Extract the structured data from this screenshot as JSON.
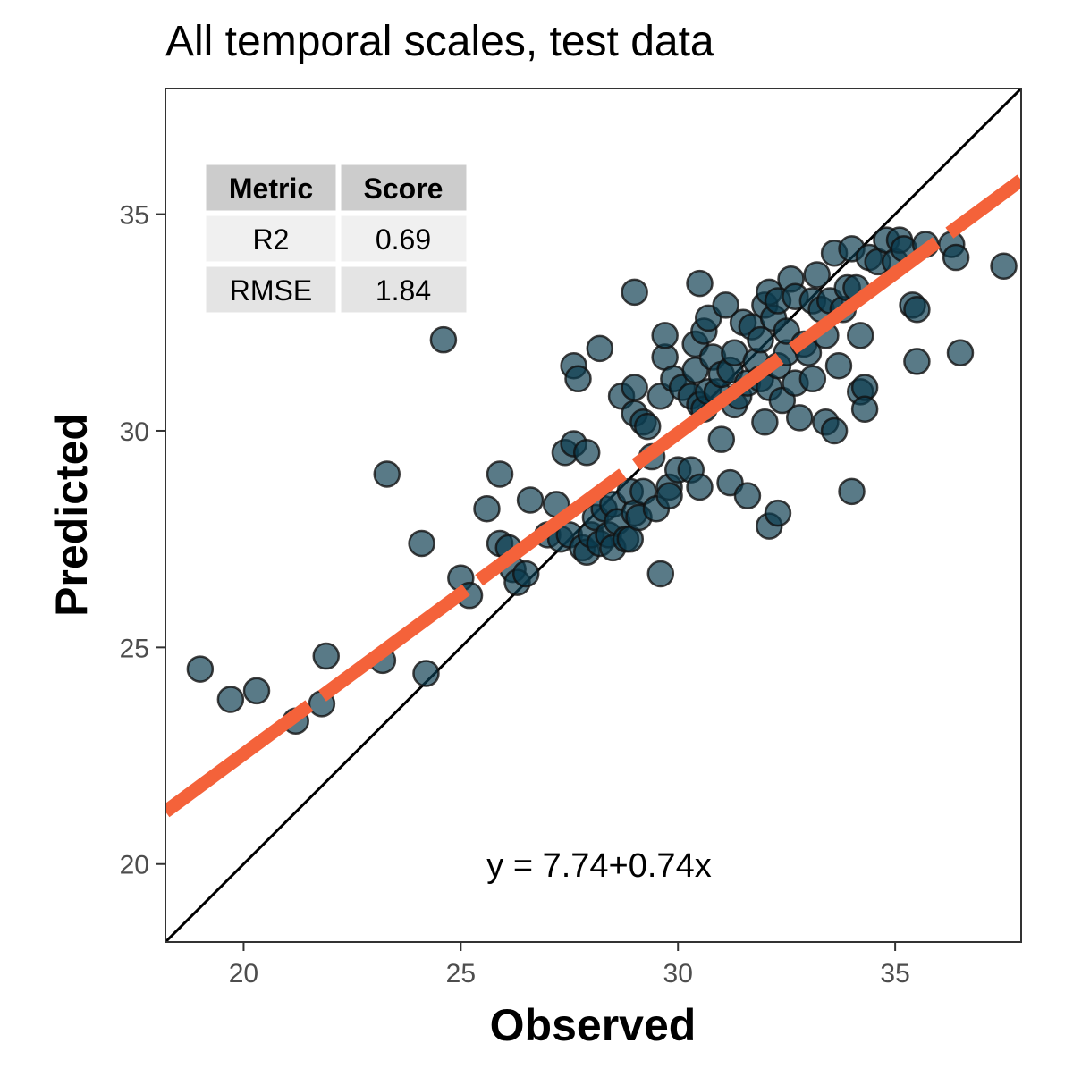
{
  "chart_data": {
    "type": "scatter",
    "title": "All temporal scales, test data",
    "xlabel": "Observed",
    "ylabel": "Predicted",
    "xlim": [
      18.2,
      37.9
    ],
    "ylim": [
      18.2,
      37.9
    ],
    "xticks": [
      20,
      25,
      30,
      35
    ],
    "yticks": [
      20,
      25,
      30,
      35
    ],
    "grid": false,
    "point_color": "#0b3b4e",
    "fit_color": "#f4623a",
    "identity_color": "#000000",
    "fit": {
      "intercept": 7.74,
      "slope": 0.74,
      "label": "y = 7.74+0.74x"
    },
    "metrics_table": {
      "headers": [
        "Metric",
        "Score"
      ],
      "rows": [
        [
          "R2",
          "0.69"
        ],
        [
          "RMSE",
          "1.84"
        ]
      ]
    },
    "points": [
      [
        19.0,
        24.5
      ],
      [
        19.7,
        23.8
      ],
      [
        20.3,
        24.0
      ],
      [
        21.2,
        23.3
      ],
      [
        21.8,
        23.7
      ],
      [
        21.9,
        24.8
      ],
      [
        23.2,
        24.7
      ],
      [
        23.3,
        29.0
      ],
      [
        24.1,
        27.4
      ],
      [
        24.2,
        24.4
      ],
      [
        24.6,
        32.1
      ],
      [
        25.0,
        26.6
      ],
      [
        25.2,
        26.2
      ],
      [
        25.6,
        28.2
      ],
      [
        25.9,
        29.0
      ],
      [
        25.9,
        27.4
      ],
      [
        26.1,
        27.3
      ],
      [
        26.2,
        26.8
      ],
      [
        26.3,
        26.5
      ],
      [
        26.5,
        26.7
      ],
      [
        26.6,
        28.4
      ],
      [
        27.0,
        27.6
      ],
      [
        27.2,
        28.3
      ],
      [
        27.3,
        27.5
      ],
      [
        27.4,
        29.5
      ],
      [
        27.5,
        27.6
      ],
      [
        27.6,
        29.7
      ],
      [
        27.6,
        31.5
      ],
      [
        27.7,
        31.2
      ],
      [
        27.8,
        27.3
      ],
      [
        27.9,
        29.5
      ],
      [
        27.9,
        27.2
      ],
      [
        28.0,
        27.6
      ],
      [
        28.1,
        28.0
      ],
      [
        28.2,
        31.9
      ],
      [
        28.2,
        27.4
      ],
      [
        28.3,
        28.2
      ],
      [
        28.4,
        27.6
      ],
      [
        28.5,
        28.3
      ],
      [
        28.5,
        27.3
      ],
      [
        28.6,
        27.9
      ],
      [
        28.7,
        30.8
      ],
      [
        28.8,
        27.5
      ],
      [
        28.9,
        28.6
      ],
      [
        28.9,
        27.5
      ],
      [
        29.0,
        31.0
      ],
      [
        29.0,
        30.4
      ],
      [
        29.0,
        28.1
      ],
      [
        29.0,
        33.2
      ],
      [
        29.1,
        28.0
      ],
      [
        29.2,
        30.2
      ],
      [
        29.2,
        28.6
      ],
      [
        29.3,
        30.1
      ],
      [
        29.4,
        29.4
      ],
      [
        29.5,
        28.2
      ],
      [
        29.6,
        26.7
      ],
      [
        29.6,
        30.8
      ],
      [
        29.7,
        31.7
      ],
      [
        29.7,
        32.2
      ],
      [
        29.8,
        28.7
      ],
      [
        29.8,
        28.5
      ],
      [
        29.9,
        31.2
      ],
      [
        30.0,
        29.1
      ],
      [
        30.1,
        31.0
      ],
      [
        30.3,
        30.8
      ],
      [
        30.3,
        29.1
      ],
      [
        30.4,
        31.4
      ],
      [
        30.4,
        32.0
      ],
      [
        30.5,
        30.6
      ],
      [
        30.5,
        28.7
      ],
      [
        30.5,
        33.4
      ],
      [
        30.6,
        32.3
      ],
      [
        30.6,
        30.5
      ],
      [
        30.7,
        30.9
      ],
      [
        30.7,
        32.6
      ],
      [
        30.8,
        31.7
      ],
      [
        30.9,
        30.9
      ],
      [
        31.0,
        31.3
      ],
      [
        31.0,
        29.8
      ],
      [
        31.1,
        32.9
      ],
      [
        31.2,
        31.4
      ],
      [
        31.2,
        28.8
      ],
      [
        31.3,
        30.6
      ],
      [
        31.3,
        31.8
      ],
      [
        31.4,
        30.8
      ],
      [
        31.5,
        32.5
      ],
      [
        31.6,
        28.5
      ],
      [
        31.6,
        31.1
      ],
      [
        31.7,
        32.4
      ],
      [
        31.8,
        31.6
      ],
      [
        31.9,
        31.2
      ],
      [
        31.9,
        32.1
      ],
      [
        32.0,
        30.2
      ],
      [
        32.0,
        32.9
      ],
      [
        32.1,
        31.0
      ],
      [
        32.1,
        33.2
      ],
      [
        32.1,
        27.8
      ],
      [
        32.2,
        32.6
      ],
      [
        32.3,
        31.5
      ],
      [
        32.3,
        33.0
      ],
      [
        32.3,
        28.1
      ],
      [
        32.4,
        30.7
      ],
      [
        32.5,
        31.8
      ],
      [
        32.5,
        32.3
      ],
      [
        32.6,
        33.5
      ],
      [
        32.7,
        31.1
      ],
      [
        32.7,
        33.1
      ],
      [
        32.8,
        30.3
      ],
      [
        32.9,
        32.0
      ],
      [
        33.0,
        31.8
      ],
      [
        33.1,
        33.0
      ],
      [
        33.1,
        31.2
      ],
      [
        33.2,
        33.6
      ],
      [
        33.3,
        32.8
      ],
      [
        33.4,
        32.2
      ],
      [
        33.4,
        30.2
      ],
      [
        33.5,
        33.0
      ],
      [
        33.6,
        30.0
      ],
      [
        33.6,
        34.1
      ],
      [
        33.7,
        31.5
      ],
      [
        33.8,
        32.8
      ],
      [
        33.9,
        33.3
      ],
      [
        34.0,
        34.2
      ],
      [
        34.0,
        28.6
      ],
      [
        34.1,
        33.3
      ],
      [
        34.2,
        30.9
      ],
      [
        34.2,
        32.2
      ],
      [
        34.3,
        31.0
      ],
      [
        34.3,
        30.5
      ],
      [
        34.4,
        34.0
      ],
      [
        34.6,
        33.9
      ],
      [
        34.8,
        34.4
      ],
      [
        35.0,
        33.9
      ],
      [
        35.1,
        34.4
      ],
      [
        35.2,
        34.2
      ],
      [
        35.4,
        32.9
      ],
      [
        35.5,
        32.8
      ],
      [
        35.5,
        31.6
      ],
      [
        35.7,
        34.3
      ],
      [
        36.3,
        34.3
      ],
      [
        36.4,
        34.0
      ],
      [
        36.5,
        31.8
      ],
      [
        37.5,
        33.8
      ]
    ]
  }
}
